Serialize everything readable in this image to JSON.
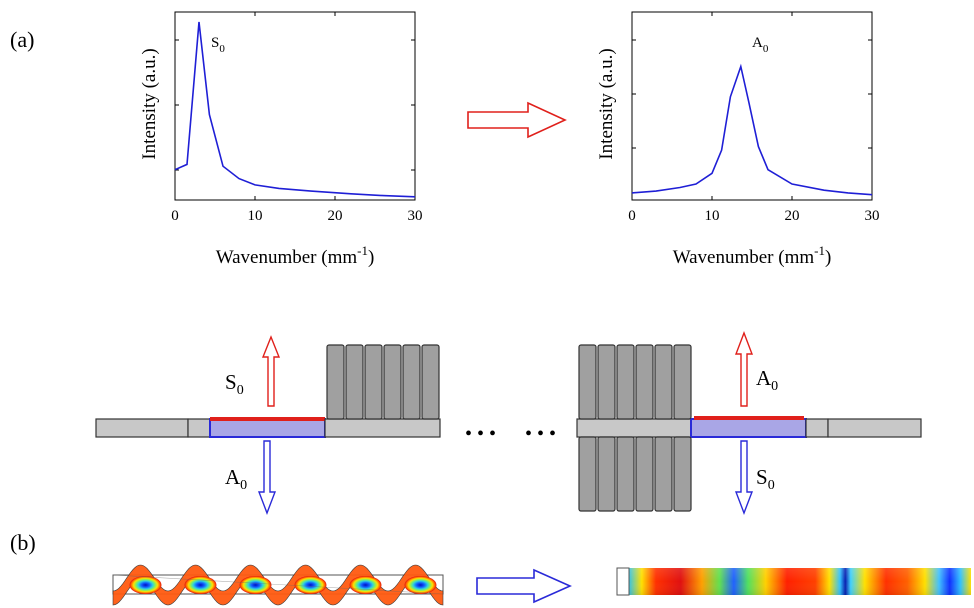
{
  "panels": {
    "a": "(a)",
    "b": "(b)"
  },
  "chart_data": [
    {
      "type": "line",
      "xlabel": "Wavenumber (mm",
      "xlabel_exp": "-1",
      "xlabel_end": ")",
      "ylabel": "Intensity (a.u.)",
      "xlim": [
        0,
        30
      ],
      "xticks": [
        "0",
        "10",
        "20",
        "30"
      ],
      "annotation": {
        "text": "S",
        "sub": "0",
        "x": 3
      },
      "series": [
        {
          "color": "#1f1fd6",
          "x": [
            0,
            1.5,
            3,
            4.3,
            6,
            8,
            10,
            13,
            17,
            22,
            26,
            30
          ],
          "y": [
            0.17,
            0.2,
            1.0,
            0.48,
            0.19,
            0.12,
            0.085,
            0.065,
            0.05,
            0.035,
            0.025,
            0.018
          ]
        }
      ]
    },
    {
      "type": "line",
      "xlabel": "Wavenumber (mm",
      "xlabel_exp": "-1",
      "xlabel_end": ")",
      "ylabel": "Intensity (a.u.)",
      "xlim": [
        0,
        30
      ],
      "xticks": [
        "0",
        "10",
        "20",
        "30"
      ],
      "annotation": {
        "text": "A",
        "sub": "0",
        "x": 13.5
      },
      "series": [
        {
          "color": "#1f1fd6",
          "x": [
            0,
            3,
            6,
            8,
            10,
            11.2,
            12.3,
            13.6,
            14.6,
            15.8,
            17,
            20,
            24,
            27,
            30
          ],
          "y": [
            0.04,
            0.05,
            0.07,
            0.09,
            0.15,
            0.28,
            0.58,
            0.75,
            0.55,
            0.3,
            0.17,
            0.09,
            0.055,
            0.04,
            0.03
          ]
        }
      ]
    }
  ],
  "diagram": {
    "ellipsis": [
      "• • •",
      "• • •"
    ],
    "left_up": {
      "text": "S",
      "sub": "0"
    },
    "left_down": {
      "text": "A",
      "sub": "0"
    },
    "right_up": {
      "text": "A",
      "sub": "0"
    },
    "right_down": {
      "text": "S",
      "sub": "0"
    }
  },
  "colors": {
    "curve": "#1f1fd6",
    "arrow_red": "#e0201b",
    "arrow_blue": "#2a2ad8",
    "plate_gray": "#c8c8c8",
    "pillar_gray": "#a0a0a0",
    "patch": "#a9a6e6"
  }
}
